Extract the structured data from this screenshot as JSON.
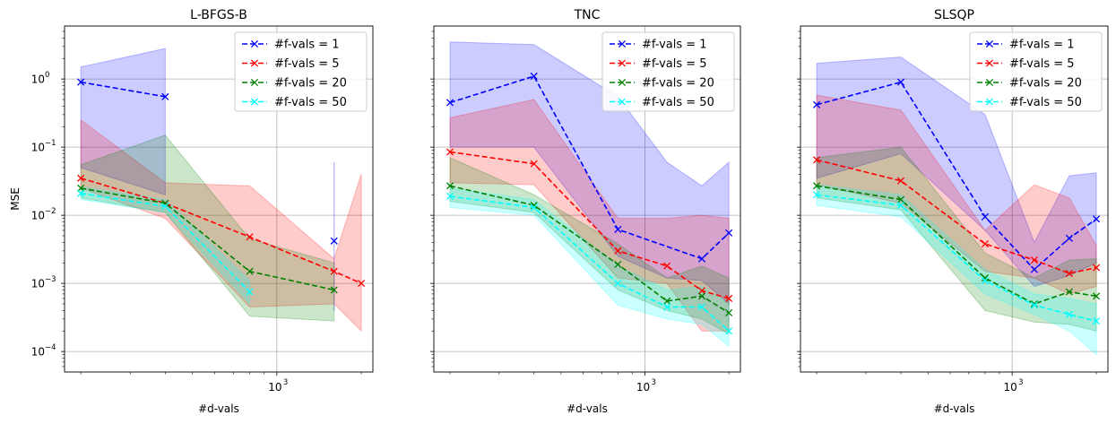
{
  "chart_data": [
    {
      "type": "line",
      "title": "L-BFGS-B",
      "xlabel": "#d-vals",
      "ylabel": "MSE",
      "xscale": "log",
      "yscale": "log",
      "xlim": [
        175,
        2200
      ],
      "ylim": [
        5e-05,
        6
      ],
      "grid": true,
      "legend": "top-right",
      "xticks": [
        {
          "value": 1000,
          "label": "10",
          "exp": "3"
        }
      ],
      "yticks": [
        {
          "value": 0.0001,
          "label": "10",
          "exp": "−4"
        },
        {
          "value": 0.001,
          "label": "10",
          "exp": "−3"
        },
        {
          "value": 0.01,
          "label": "10",
          "exp": "−2"
        },
        {
          "value": 0.1,
          "label": "10",
          "exp": "−1"
        },
        {
          "value": 1,
          "label": "10",
          "exp": "0"
        }
      ],
      "series": [
        {
          "name": "#f-vals = 1",
          "color": "#0000ff",
          "x": [
            200,
            400,
            1600
          ],
          "y": [
            0.9,
            0.55,
            0.0042
          ],
          "bands": [
            {
              "x": [
                200,
                400
              ],
              "low": [
                0.05,
                0.02
              ],
              "high": [
                1.5,
                2.8
              ]
            },
            {
              "x": [
                1600,
                1600
              ],
              "low": [
                0.0004,
                0.0004
              ],
              "high": [
                0.06,
                0.06
              ]
            }
          ]
        },
        {
          "name": "#f-vals = 5",
          "color": "#ff0000",
          "x": [
            200,
            400,
            800,
            1600,
            2000
          ],
          "y": [
            0.035,
            0.015,
            0.0048,
            0.0015,
            0.001
          ],
          "bands": [
            {
              "x": [
                200,
                400,
                800,
                1600,
                2000
              ],
              "low": [
                0.025,
                0.009,
                0.00045,
                0.0005,
                0.0002
              ],
              "high": [
                0.25,
                0.03,
                0.027,
                0.0023,
                0.04
              ]
            }
          ]
        },
        {
          "name": "#f-vals = 20",
          "color": "#008000",
          "x": [
            200,
            400,
            800,
            1600
          ],
          "y": [
            0.025,
            0.015,
            0.0015,
            0.0008
          ],
          "bands": [
            {
              "x": [
                200,
                400,
                800,
                1600
              ],
              "low": [
                0.018,
                0.011,
                0.00033,
                0.00028
              ],
              "high": [
                0.055,
                0.15,
                0.0045,
                0.002
              ]
            }
          ]
        },
        {
          "name": "#f-vals = 50",
          "color": "#00ffff",
          "x": [
            200,
            400,
            800
          ],
          "y": [
            0.021,
            0.0135,
            0.00075
          ],
          "bands": [
            {
              "x": [
                200,
                400,
                800
              ],
              "low": [
                0.017,
                0.011,
                0.0005
              ],
              "high": [
                0.026,
                0.017,
                0.0011
              ]
            }
          ]
        }
      ]
    },
    {
      "type": "line",
      "title": "TNC",
      "xlabel": "#d-vals",
      "ylabel": "",
      "xscale": "log",
      "yscale": "log",
      "xlim": [
        175,
        2200
      ],
      "ylim": [
        5e-05,
        6
      ],
      "grid": true,
      "legend": "top-right",
      "xticks": [
        {
          "value": 1000,
          "label": "10",
          "exp": "3"
        }
      ],
      "yticks": [],
      "series": [
        {
          "name": "#f-vals = 1",
          "color": "#0000ff",
          "x": [
            200,
            400,
            800,
            1600,
            2000
          ],
          "y": [
            0.45,
            1.1,
            0.0062,
            0.0023,
            0.0055
          ],
          "bands": [
            {
              "x": [
                200,
                400,
                800,
                1200,
                1600,
                2000
              ],
              "low": [
                0.1,
                0.1,
                0.0025,
                0.0012,
                0.0011,
                0.0005
              ],
              "high": [
                3.5,
                3.2,
                0.55,
                0.06,
                0.027,
                0.06
              ]
            }
          ]
        },
        {
          "name": "#f-vals = 5",
          "color": "#ff0000",
          "x": [
            200,
            400,
            800,
            1200,
            1600,
            2000
          ],
          "y": [
            0.085,
            0.057,
            0.003,
            0.0018,
            0.00078,
            0.0006
          ],
          "bands": [
            {
              "x": [
                200,
                400,
                800,
                1200,
                1600,
                2000
              ],
              "low": [
                0.03,
                0.028,
                0.0012,
                0.001,
                0.0002,
                0.0002
              ],
              "high": [
                0.27,
                0.5,
                0.009,
                0.009,
                0.01,
                0.009
              ]
            }
          ]
        },
        {
          "name": "#f-vals = 20",
          "color": "#008000",
          "x": [
            200,
            400,
            800,
            1200,
            1600,
            2000
          ],
          "y": [
            0.027,
            0.014,
            0.0019,
            0.00055,
            0.00065,
            0.00037
          ],
          "bands": [
            {
              "x": [
                200,
                400,
                800,
                1200,
                1600,
                2000
              ],
              "low": [
                0.016,
                0.011,
                0.0008,
                0.0004,
                0.0003,
                0.00018
              ],
              "high": [
                0.07,
                0.02,
                0.0038,
                0.0012,
                0.0018,
                0.0012
              ]
            }
          ]
        },
        {
          "name": "#f-vals = 50",
          "color": "#00ffff",
          "x": [
            200,
            400,
            800,
            1200,
            1600,
            2000
          ],
          "y": [
            0.019,
            0.013,
            0.001,
            0.00045,
            0.00045,
            0.0002
          ],
          "bands": [
            {
              "x": [
                200,
                400,
                800,
                1200,
                1600,
                2000
              ],
              "low": [
                0.013,
                0.01,
                0.00048,
                0.0003,
                0.00025,
                0.00012
              ],
              "high": [
                0.025,
                0.017,
                0.0018,
                0.0008,
                0.0009,
                0.0005
              ]
            }
          ]
        }
      ]
    },
    {
      "type": "line",
      "title": "SLSQP",
      "xlabel": "#d-vals",
      "ylabel": "",
      "xscale": "log",
      "yscale": "log",
      "xlim": [
        175,
        2200
      ],
      "ylim": [
        5e-05,
        6
      ],
      "grid": true,
      "legend": "top-right",
      "xticks": [
        {
          "value": 1000,
          "label": "10",
          "exp": "3"
        }
      ],
      "yticks": [],
      "series": [
        {
          "name": "#f-vals = 1",
          "color": "#0000ff",
          "x": [
            200,
            400,
            800,
            1200,
            1600,
            2000
          ],
          "y": [
            0.42,
            0.9,
            0.0095,
            0.0016,
            0.0046,
            0.0088
          ],
          "bands": [
            {
              "x": [
                200,
                400,
                800,
                1200,
                1600,
                2000
              ],
              "low": [
                0.035,
                0.08,
                0.006,
                0.0009,
                0.0013,
                0.002
              ],
              "high": [
                1.7,
                2.1,
                0.3,
                0.004,
                0.038,
                0.042
              ]
            }
          ]
        },
        {
          "name": "#f-vals = 5",
          "color": "#ff0000",
          "x": [
            200,
            400,
            800,
            1200,
            1600,
            2000
          ],
          "y": [
            0.065,
            0.032,
            0.0038,
            0.0022,
            0.0014,
            0.0017
          ],
          "bands": [
            {
              "x": [
                200,
                400,
                800,
                1200,
                1600,
                2000
              ],
              "low": [
                0.028,
                0.015,
                0.0015,
                0.0012,
                0.0007,
                0.0009
              ],
              "high": [
                0.58,
                0.35,
                0.006,
                0.028,
                0.018,
                0.0036
              ]
            }
          ]
        },
        {
          "name": "#f-vals = 20",
          "color": "#008000",
          "x": [
            200,
            400,
            800,
            1200,
            1600,
            2000
          ],
          "y": [
            0.027,
            0.017,
            0.0012,
            0.0005,
            0.00075,
            0.00065
          ],
          "bands": [
            {
              "x": [
                200,
                400,
                800,
                1200,
                1600,
                2000
              ],
              "low": [
                0.018,
                0.012,
                0.0004,
                0.00027,
                0.00025,
                0.0002
              ],
              "high": [
                0.07,
                0.1,
                0.0028,
                0.0012,
                0.0022,
                0.0023
              ]
            }
          ]
        },
        {
          "name": "#f-vals = 50",
          "color": "#00ffff",
          "x": [
            200,
            400,
            800,
            1200,
            1600,
            2000
          ],
          "y": [
            0.02,
            0.014,
            0.0011,
            0.00048,
            0.00035,
            0.00028
          ],
          "bands": [
            {
              "x": [
                200,
                400,
                800,
                1200,
                1600,
                2000
              ],
              "low": [
                0.014,
                0.0095,
                0.0007,
                0.00035,
                0.0002,
                9e-05
              ],
              "high": [
                0.028,
                0.02,
                0.0016,
                0.0007,
                0.0006,
                0.0005
              ]
            }
          ]
        }
      ]
    }
  ]
}
